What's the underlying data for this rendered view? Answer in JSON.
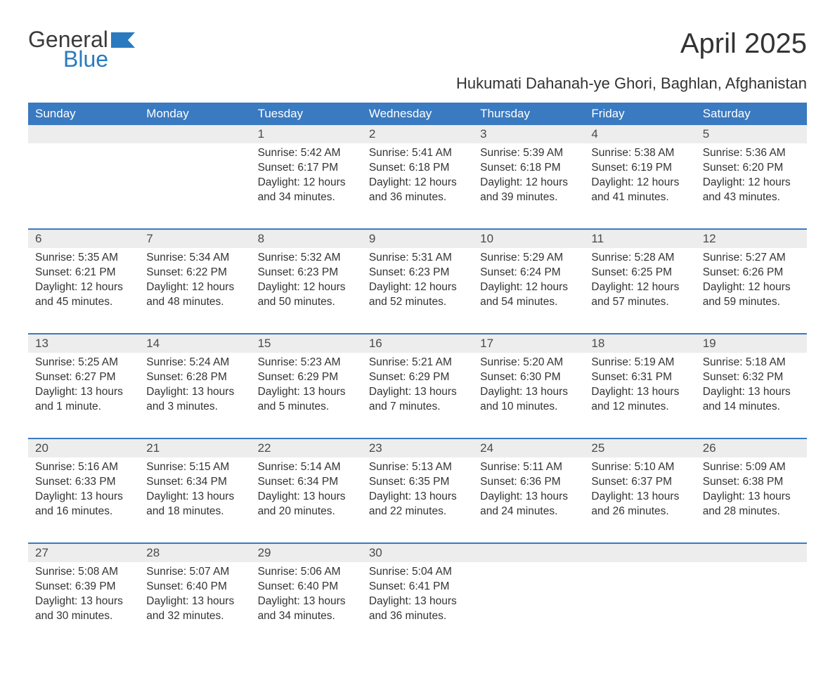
{
  "logo": {
    "word1": "General",
    "word2": "Blue",
    "flag_color": "#2a7ac0"
  },
  "title": "April 2025",
  "subtitle": "Hukumati Dahanah-ye Ghori, Baghlan, Afghanistan",
  "colors": {
    "header_bg": "#3a7ac0",
    "header_text": "#ffffff",
    "daynum_bg": "#ededed",
    "daynum_border": "#3a7ac0",
    "body_text": "#333333",
    "logo_gray": "#3a3a3a",
    "logo_blue": "#2a7ac0",
    "page_bg": "#ffffff"
  },
  "fonts": {
    "title_size_pt": 30,
    "subtitle_size_pt": 17,
    "header_size_pt": 13,
    "daynum_size_pt": 13,
    "cell_size_pt": 12
  },
  "weekdays": [
    "Sunday",
    "Monday",
    "Tuesday",
    "Wednesday",
    "Thursday",
    "Friday",
    "Saturday"
  ],
  "weeks": [
    [
      null,
      null,
      {
        "n": "1",
        "sr": "5:42 AM",
        "ss": "6:17 PM",
        "dl": "12 hours and 34 minutes."
      },
      {
        "n": "2",
        "sr": "5:41 AM",
        "ss": "6:18 PM",
        "dl": "12 hours and 36 minutes."
      },
      {
        "n": "3",
        "sr": "5:39 AM",
        "ss": "6:18 PM",
        "dl": "12 hours and 39 minutes."
      },
      {
        "n": "4",
        "sr": "5:38 AM",
        "ss": "6:19 PM",
        "dl": "12 hours and 41 minutes."
      },
      {
        "n": "5",
        "sr": "5:36 AM",
        "ss": "6:20 PM",
        "dl": "12 hours and 43 minutes."
      }
    ],
    [
      {
        "n": "6",
        "sr": "5:35 AM",
        "ss": "6:21 PM",
        "dl": "12 hours and 45 minutes."
      },
      {
        "n": "7",
        "sr": "5:34 AM",
        "ss": "6:22 PM",
        "dl": "12 hours and 48 minutes."
      },
      {
        "n": "8",
        "sr": "5:32 AM",
        "ss": "6:23 PM",
        "dl": "12 hours and 50 minutes."
      },
      {
        "n": "9",
        "sr": "5:31 AM",
        "ss": "6:23 PM",
        "dl": "12 hours and 52 minutes."
      },
      {
        "n": "10",
        "sr": "5:29 AM",
        "ss": "6:24 PM",
        "dl": "12 hours and 54 minutes."
      },
      {
        "n": "11",
        "sr": "5:28 AM",
        "ss": "6:25 PM",
        "dl": "12 hours and 57 minutes."
      },
      {
        "n": "12",
        "sr": "5:27 AM",
        "ss": "6:26 PM",
        "dl": "12 hours and 59 minutes."
      }
    ],
    [
      {
        "n": "13",
        "sr": "5:25 AM",
        "ss": "6:27 PM",
        "dl": "13 hours and 1 minute."
      },
      {
        "n": "14",
        "sr": "5:24 AM",
        "ss": "6:28 PM",
        "dl": "13 hours and 3 minutes."
      },
      {
        "n": "15",
        "sr": "5:23 AM",
        "ss": "6:29 PM",
        "dl": "13 hours and 5 minutes."
      },
      {
        "n": "16",
        "sr": "5:21 AM",
        "ss": "6:29 PM",
        "dl": "13 hours and 7 minutes."
      },
      {
        "n": "17",
        "sr": "5:20 AM",
        "ss": "6:30 PM",
        "dl": "13 hours and 10 minutes."
      },
      {
        "n": "18",
        "sr": "5:19 AM",
        "ss": "6:31 PM",
        "dl": "13 hours and 12 minutes."
      },
      {
        "n": "19",
        "sr": "5:18 AM",
        "ss": "6:32 PM",
        "dl": "13 hours and 14 minutes."
      }
    ],
    [
      {
        "n": "20",
        "sr": "5:16 AM",
        "ss": "6:33 PM",
        "dl": "13 hours and 16 minutes."
      },
      {
        "n": "21",
        "sr": "5:15 AM",
        "ss": "6:34 PM",
        "dl": "13 hours and 18 minutes."
      },
      {
        "n": "22",
        "sr": "5:14 AM",
        "ss": "6:34 PM",
        "dl": "13 hours and 20 minutes."
      },
      {
        "n": "23",
        "sr": "5:13 AM",
        "ss": "6:35 PM",
        "dl": "13 hours and 22 minutes."
      },
      {
        "n": "24",
        "sr": "5:11 AM",
        "ss": "6:36 PM",
        "dl": "13 hours and 24 minutes."
      },
      {
        "n": "25",
        "sr": "5:10 AM",
        "ss": "6:37 PM",
        "dl": "13 hours and 26 minutes."
      },
      {
        "n": "26",
        "sr": "5:09 AM",
        "ss": "6:38 PM",
        "dl": "13 hours and 28 minutes."
      }
    ],
    [
      {
        "n": "27",
        "sr": "5:08 AM",
        "ss": "6:39 PM",
        "dl": "13 hours and 30 minutes."
      },
      {
        "n": "28",
        "sr": "5:07 AM",
        "ss": "6:40 PM",
        "dl": "13 hours and 32 minutes."
      },
      {
        "n": "29",
        "sr": "5:06 AM",
        "ss": "6:40 PM",
        "dl": "13 hours and 34 minutes."
      },
      {
        "n": "30",
        "sr": "5:04 AM",
        "ss": "6:41 PM",
        "dl": "13 hours and 36 minutes."
      },
      null,
      null,
      null
    ]
  ],
  "labels": {
    "sunrise": "Sunrise: ",
    "sunset": "Sunset: ",
    "daylight": "Daylight: "
  }
}
